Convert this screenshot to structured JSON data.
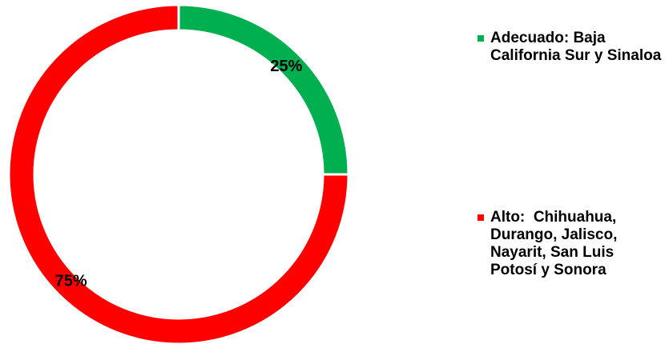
{
  "chart_data": {
    "type": "donut",
    "categories": [
      "Adecuado: Baja California Sur y Sinaloa",
      "Alto:  Chihuahua, Durango, Jalisco, Nayarit, San Luis Potosí y Sonora"
    ],
    "values": [
      25,
      75
    ],
    "value_labels": [
      "25%",
      "75%"
    ],
    "colors": [
      "#00b050",
      "#ff0000"
    ],
    "legend": "right"
  }
}
